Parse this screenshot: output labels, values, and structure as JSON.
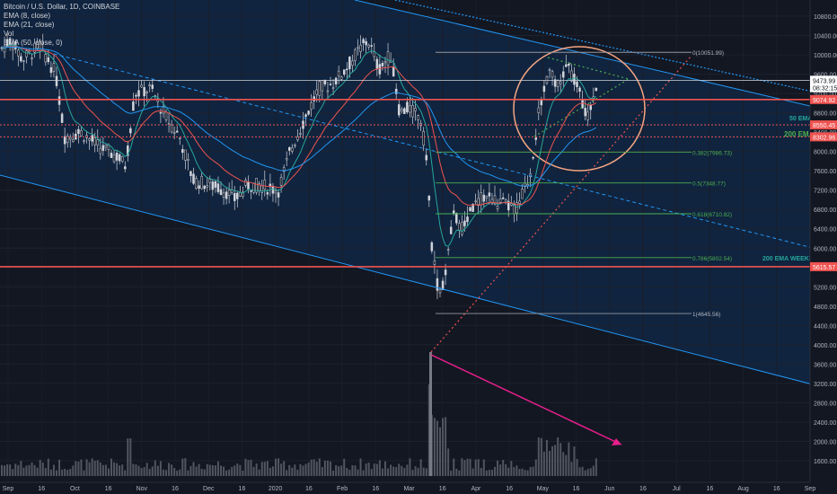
{
  "legend": {
    "symbol": "Bitcoin / U.S. Dollar, 1D, COINBASE",
    "ema1": "EMA (8, close)",
    "ema2": "EMA (21, close)",
    "vol": "Vol",
    "ema3": "EMA (50, close, 0)"
  },
  "chart_data": {
    "type": "candlestick",
    "title": "Bitcoin / U.S. Dollar, 1D, COINBASE",
    "y_axis_ticks": [
      10800,
      10400,
      10000,
      9600,
      9200,
      8800,
      8400,
      8000,
      7600,
      7200,
      6800,
      6400,
      6000,
      5600,
      5200,
      4800,
      4400,
      4000,
      3600,
      3200,
      2800,
      2400,
      2000,
      1600
    ],
    "ylim": [
      1300,
      11000
    ],
    "x_axis_ticks": [
      "Sep",
      "16",
      "Oct",
      "16",
      "Nov",
      "16",
      "Dec",
      "16",
      "2020",
      "16",
      "Feb",
      "16",
      "Mar",
      "16",
      "Apr",
      "16",
      "May",
      "16",
      "Jun",
      "16",
      "Jul",
      "16",
      "Aug",
      "16",
      "Sep"
    ],
    "price_badges": [
      {
        "label": "9473.99",
        "value": 9474,
        "color": "#ffffff",
        "text_color": "#131722"
      },
      {
        "label": "08:32:15",
        "value": 9320,
        "color": "#ffffff",
        "text_color": "#131722"
      },
      {
        "label": "9074.92",
        "value": 9075,
        "color": "#ef5350",
        "text_color": "#ffffff"
      },
      {
        "label": "8550.45",
        "value": 8550,
        "color": "#ef5350",
        "text_color": "#ffffff"
      },
      {
        "label": "8302.96",
        "value": 8303,
        "color": "#ef5350",
        "text_color": "#ffffff"
      },
      {
        "label": "5615.57",
        "value": 5616,
        "color": "#ef5350",
        "text_color": "#ffffff"
      }
    ],
    "fib_levels": [
      {
        "label": "0(10051.99)",
        "value": 10052
      },
      {
        "label": "0.382(7986.73)",
        "value": 7987
      },
      {
        "label": "0.5(7348.77)",
        "value": 7349
      },
      {
        "label": "0.618(6710.82)",
        "value": 6711
      },
      {
        "label": "0.786(5802.54)",
        "value": 5803
      },
      {
        "label": "1(4645.56)",
        "value": 4646
      }
    ],
    "annotations": [
      {
        "text": "50 EMA",
        "color": "#26a69a"
      },
      {
        "text": "200 EMA",
        "color": "#4caf50"
      },
      {
        "text": "200 EMA WEEKLY",
        "color": "#26a69a"
      }
    ],
    "colors": {
      "up": "#d1d4dc",
      "down": "#d1d4dc",
      "support": "#ef5350",
      "channel": "#2196f3",
      "fib": "#4caf50",
      "arrow": "#e91e8c",
      "circle": "#f4a582"
    }
  }
}
